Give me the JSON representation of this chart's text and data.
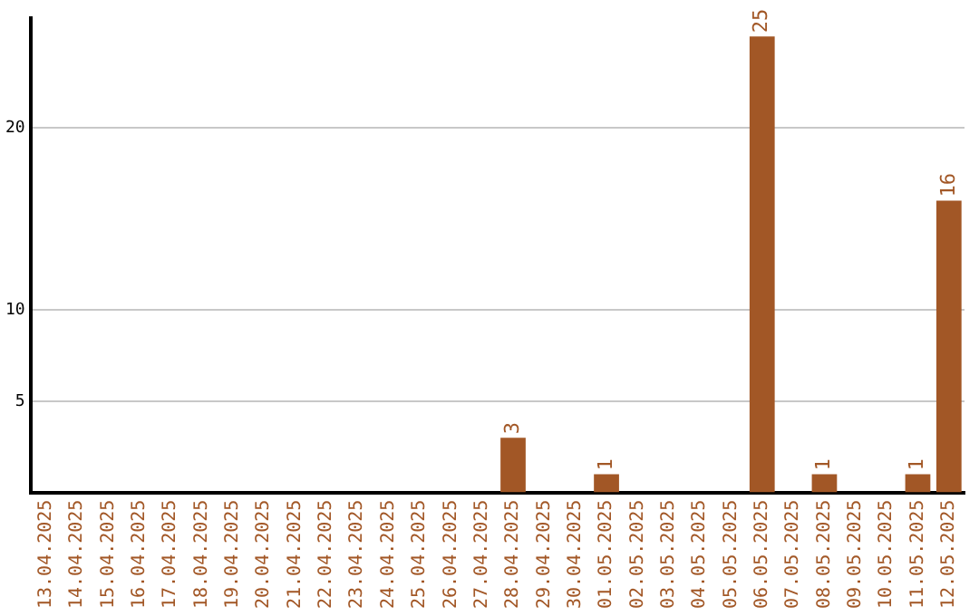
{
  "chart_data": {
    "type": "bar",
    "categories": [
      "13.04.2025",
      "14.04.2025",
      "15.04.2025",
      "16.04.2025",
      "17.04.2025",
      "18.04.2025",
      "19.04.2025",
      "20.04.2025",
      "21.04.2025",
      "22.04.2025",
      "23.04.2025",
      "24.04.2025",
      "25.04.2025",
      "26.04.2025",
      "27.04.2025",
      "28.04.2025",
      "29.04.2025",
      "30.04.2025",
      "01.05.2025",
      "02.05.2025",
      "03.05.2025",
      "04.05.2025",
      "05.05.2025",
      "06.05.2025",
      "07.05.2025",
      "08.05.2025",
      "09.05.2025",
      "10.05.2025",
      "11.05.2025",
      "12.05.2025"
    ],
    "values": [
      0,
      0,
      0,
      0,
      0,
      0,
      0,
      0,
      0,
      0,
      0,
      0,
      0,
      0,
      0,
      3,
      0,
      0,
      1,
      0,
      0,
      0,
      0,
      25,
      0,
      1,
      0,
      0,
      1,
      16
    ],
    "value_labels": [
      null,
      null,
      null,
      null,
      null,
      null,
      null,
      null,
      null,
      null,
      null,
      null,
      null,
      null,
      null,
      "3",
      null,
      null,
      "1",
      null,
      null,
      null,
      null,
      "25",
      null,
      "1",
      null,
      null,
      "1",
      "16"
    ],
    "color": "#a25726",
    "ylim": [
      0,
      26
    ],
    "yticks": [
      5,
      10,
      20
    ],
    "grid": "y",
    "legend": false
  }
}
